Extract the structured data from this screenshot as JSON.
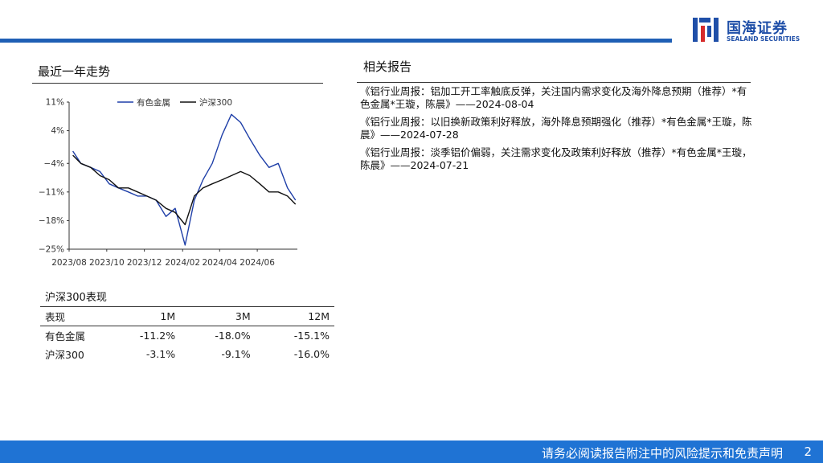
{
  "brand": {
    "name_cn": "国海证券",
    "name_en": "SEALAND SECURITIES"
  },
  "trend": {
    "title": "最近一年走势",
    "legend": [
      "有色金属",
      "沪深300"
    ]
  },
  "chart_data": {
    "type": "line",
    "x_ticks": [
      "2023/08",
      "2023/10",
      "2023/12",
      "2024/02",
      "2024/04",
      "2024/06"
    ],
    "y_ticks": [
      "11%",
      "4%",
      "-4%",
      "-11%",
      "-18%",
      "-25%"
    ],
    "ylim": [
      -25,
      11
    ],
    "x_range": [
      "2023/08",
      "2024/08"
    ],
    "grid": false,
    "legend_position": "top-center",
    "series": [
      {
        "name": "有色金属",
        "color": "#1f3fa8",
        "x": [
          "2023/08/07",
          "2023/08/20",
          "2023/09/05",
          "2023/09/20",
          "2023/10/05",
          "2023/10/20",
          "2023/11/05",
          "2023/11/20",
          "2023/12/05",
          "2023/12/20",
          "2024/01/05",
          "2024/01/20",
          "2024/02/05",
          "2024/02/20",
          "2024/03/05",
          "2024/03/20",
          "2024/04/05",
          "2024/04/20",
          "2024/05/05",
          "2024/05/20",
          "2024/06/05",
          "2024/06/20",
          "2024/07/05",
          "2024/07/20",
          "2024/08/02"
        ],
        "values": [
          -1,
          -4,
          -5,
          -6,
          -9,
          -10,
          -11,
          -12,
          -12,
          -13,
          -17,
          -15,
          -24,
          -13,
          -8,
          -4,
          3,
          8,
          6,
          2,
          -2,
          -5,
          -4,
          -10,
          -13
        ]
      },
      {
        "name": "沪深300",
        "color": "#111111",
        "x": [
          "2023/08/07",
          "2023/08/20",
          "2023/09/05",
          "2023/09/20",
          "2023/10/05",
          "2023/10/20",
          "2023/11/05",
          "2023/11/20",
          "2023/12/05",
          "2023/12/20",
          "2024/01/05",
          "2024/01/20",
          "2024/02/05",
          "2024/02/20",
          "2024/03/05",
          "2024/03/20",
          "2024/04/05",
          "2024/04/20",
          "2024/05/05",
          "2024/05/20",
          "2024/06/05",
          "2024/06/20",
          "2024/07/05",
          "2024/07/20",
          "2024/08/02"
        ],
        "values": [
          -2,
          -4,
          -5,
          -7,
          -8,
          -10,
          -10,
          -11,
          -12,
          -13,
          -15,
          -16,
          -19,
          -12,
          -10,
          -9,
          -8,
          -7,
          -6,
          -7,
          -9,
          -11,
          -11,
          -12,
          -14
        ]
      }
    ]
  },
  "performance": {
    "title": "沪深300表现",
    "header": [
      "表现",
      "1M",
      "3M",
      "12M"
    ],
    "rows": [
      [
        "有色金属",
        "-11.2%",
        "-18.0%",
        "-15.1%"
      ],
      [
        "沪深300",
        "-3.1%",
        "-9.1%",
        "-16.0%"
      ]
    ]
  },
  "related": {
    "title": "相关报告",
    "items": [
      "《铝行业周报：铝加工开工率触底反弹，关注国内需求变化及海外降息预期（推荐）*有色金属*王璇，陈晨》——2024-08-04",
      "《铝行业周报：以旧换新政策利好释放，海外降息预期强化（推荐）*有色金属*王璇，陈晨》——2024-07-28",
      "《铝行业周报：淡季铝价偏弱，关注需求变化及政策利好释放（推荐）*有色金属*王璇，陈晨》——2024-07-21"
    ]
  },
  "footer": {
    "disclaimer": "请务必阅读报告附注中的风险提示和免责声明",
    "page": "2"
  }
}
